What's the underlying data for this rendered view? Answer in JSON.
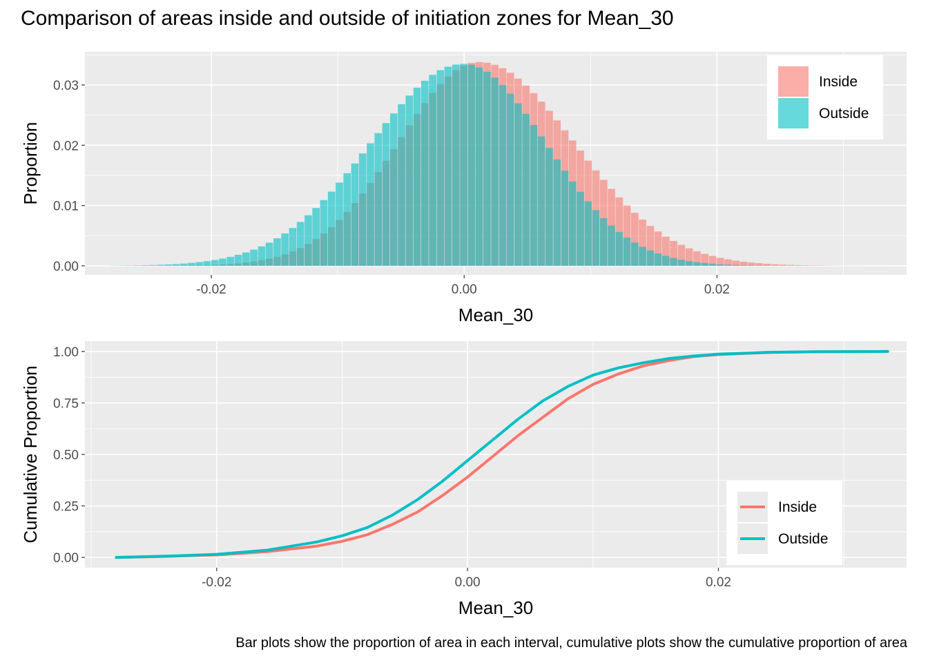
{
  "title": "Comparison of areas inside and outside of initiation zones for Mean_30",
  "caption": "Bar plots show the proportion of area in each interval, cumulative plots show the cumulative proportion of area",
  "colors": {
    "inside": "#F8766D",
    "outside": "#00BFC4",
    "panel": "#EBEBEB",
    "grid": "#FFFFFF"
  },
  "chart_data": [
    {
      "type": "bar",
      "xlabel": "Mean_30",
      "ylabel": "Proportion",
      "xlim": [
        -0.03,
        0.035
      ],
      "ylim": [
        -0.0015,
        0.0355
      ],
      "xticks": [
        -0.02,
        0.0,
        0.02
      ],
      "xtick_labels": [
        "-0.02",
        "0.00",
        "0.02"
      ],
      "yticks": [
        0.0,
        0.01,
        0.02,
        0.03
      ],
      "ytick_labels": [
        "0.00",
        "0.01",
        "0.02",
        "0.03"
      ],
      "grid": true,
      "legend_position": "top-right",
      "series": [
        {
          "name": "Inside",
          "dist": {
            "bins": 100,
            "x_start": -0.028,
            "x_end": 0.0335,
            "mode": 0.0012,
            "peak": 0.0338,
            "sigma_left": 0.0064,
            "sigma_right": 0.0075
          }
        },
        {
          "name": "Outside",
          "dist": {
            "bins": 100,
            "x_start": -0.028,
            "x_end": 0.0335,
            "mode": 0.0,
            "peak": 0.0335,
            "sigma_left": 0.0074,
            "sigma_right": 0.0065
          }
        }
      ]
    },
    {
      "type": "line",
      "xlabel": "Mean_30",
      "ylabel": "Cumulative Proportion",
      "xlim": [
        -0.0305,
        0.035
      ],
      "ylim": [
        -0.05,
        1.05
      ],
      "xticks": [
        -0.02,
        0.0,
        0.02
      ],
      "xtick_labels": [
        "-0.02",
        "0.00",
        "0.02"
      ],
      "yticks": [
        0.0,
        0.25,
        0.5,
        0.75,
        1.0
      ],
      "ytick_labels": [
        "0.00",
        "0.25",
        "0.50",
        "0.75",
        "1.00"
      ],
      "grid": true,
      "legend_position": "bottom-right",
      "series": [
        {
          "name": "Inside",
          "x": [
            -0.028,
            -0.024,
            -0.02,
            -0.016,
            -0.012,
            -0.01,
            -0.008,
            -0.006,
            -0.004,
            -0.002,
            0.0,
            0.002,
            0.004,
            0.006,
            0.008,
            0.01,
            0.012,
            0.014,
            0.016,
            0.018,
            0.02,
            0.024,
            0.028,
            0.0335
          ],
          "values": [
            0.0,
            0.005,
            0.012,
            0.028,
            0.055,
            0.078,
            0.11,
            0.16,
            0.22,
            0.3,
            0.39,
            0.49,
            0.59,
            0.68,
            0.77,
            0.84,
            0.89,
            0.93,
            0.955,
            0.975,
            0.985,
            0.995,
            0.999,
            1.0
          ]
        },
        {
          "name": "Outside",
          "x": [
            -0.028,
            -0.024,
            -0.02,
            -0.016,
            -0.012,
            -0.01,
            -0.008,
            -0.006,
            -0.004,
            -0.002,
            0.0,
            0.002,
            0.004,
            0.006,
            0.008,
            0.01,
            0.012,
            0.014,
            0.016,
            0.018,
            0.02,
            0.024,
            0.028,
            0.0335
          ],
          "values": [
            0.0,
            0.006,
            0.015,
            0.035,
            0.075,
            0.105,
            0.145,
            0.205,
            0.28,
            0.37,
            0.47,
            0.57,
            0.67,
            0.76,
            0.83,
            0.885,
            0.92,
            0.945,
            0.965,
            0.978,
            0.987,
            0.996,
            0.999,
            1.0
          ]
        }
      ]
    }
  ]
}
